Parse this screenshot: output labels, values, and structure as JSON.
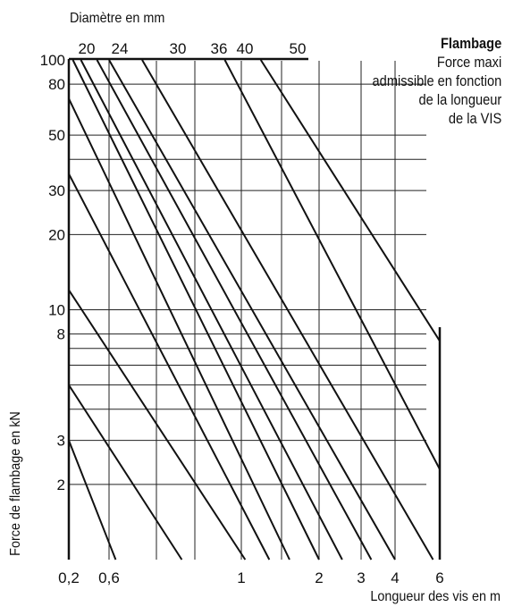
{
  "chart_data": {
    "type": "line",
    "title": "Flambage",
    "subtitle_lines": [
      "Force maxi",
      "admissible en fonction",
      "de la longueur",
      "de la VIS"
    ],
    "top_axis_label": "Diamètre en mm",
    "xlabel": "Longueur des vis en m",
    "ylabel": "Force de flambage en kN",
    "x_ticks": [
      {
        "value": 0.2,
        "label": "0,2"
      },
      {
        "value": 0.6,
        "label": "0,6"
      },
      {
        "value": 1,
        "label": "1"
      },
      {
        "value": 2,
        "label": "2"
      },
      {
        "value": 3,
        "label": "3"
      },
      {
        "value": 4,
        "label": "4"
      },
      {
        "value": 6,
        "label": "6"
      }
    ],
    "y_ticks": [
      {
        "value": 100,
        "label": "100"
      },
      {
        "value": 80,
        "label": "80"
      },
      {
        "value": 50,
        "label": "50"
      },
      {
        "value": 30,
        "label": "30"
      },
      {
        "value": 20,
        "label": "20"
      },
      {
        "value": 10,
        "label": "10"
      },
      {
        "value": 8,
        "label": "8"
      },
      {
        "value": 3,
        "label": "3"
      },
      {
        "value": 2,
        "label": "2"
      }
    ],
    "diameter_labels": [
      "20",
      "24",
      "30",
      "36",
      "40",
      "50"
    ],
    "grid": true,
    "series": [
      {
        "name": "",
        "values": [
          [
            0.2,
            3.0
          ],
          [
            0.62,
            1.0
          ]
        ]
      },
      {
        "name": "",
        "values": [
          [
            0.2,
            5.0
          ],
          [
            0.82,
            1.0
          ]
        ]
      },
      {
        "name": "",
        "values": [
          [
            0.2,
            12.0
          ],
          [
            1.05,
            1.0
          ]
        ]
      },
      {
        "name": "",
        "values": [
          [
            0.2,
            35.0
          ],
          [
            1.36,
            1.0
          ]
        ]
      },
      {
        "name": "",
        "values": [
          [
            0.2,
            70.0
          ],
          [
            1.62,
            1.0
          ]
        ]
      },
      {
        "name": "",
        "values": [
          [
            0.24,
            100.0
          ],
          [
            2.0,
            1.0
          ]
        ]
      },
      {
        "name": "",
        "values": [
          [
            0.32,
            100.0
          ],
          [
            2.55,
            1.0
          ]
        ]
      },
      {
        "name": "",
        "values": [
          [
            0.48,
            100.0
          ],
          [
            3.3,
            1.0
          ]
        ]
      },
      {
        "name": "",
        "values": [
          [
            0.6,
            100.0
          ],
          [
            4.0,
            1.0
          ]
        ]
      },
      {
        "name": "",
        "values": [
          [
            0.7,
            100.0
          ],
          [
            5.7,
            1.0
          ]
        ]
      },
      {
        "name": "",
        "values": [
          [
            0.95,
            100.0
          ],
          [
            6.0,
            2.3
          ]
        ]
      },
      {
        "name": "",
        "values": [
          [
            1.25,
            100.0
          ],
          [
            6.0,
            7.5
          ]
        ]
      }
    ]
  }
}
